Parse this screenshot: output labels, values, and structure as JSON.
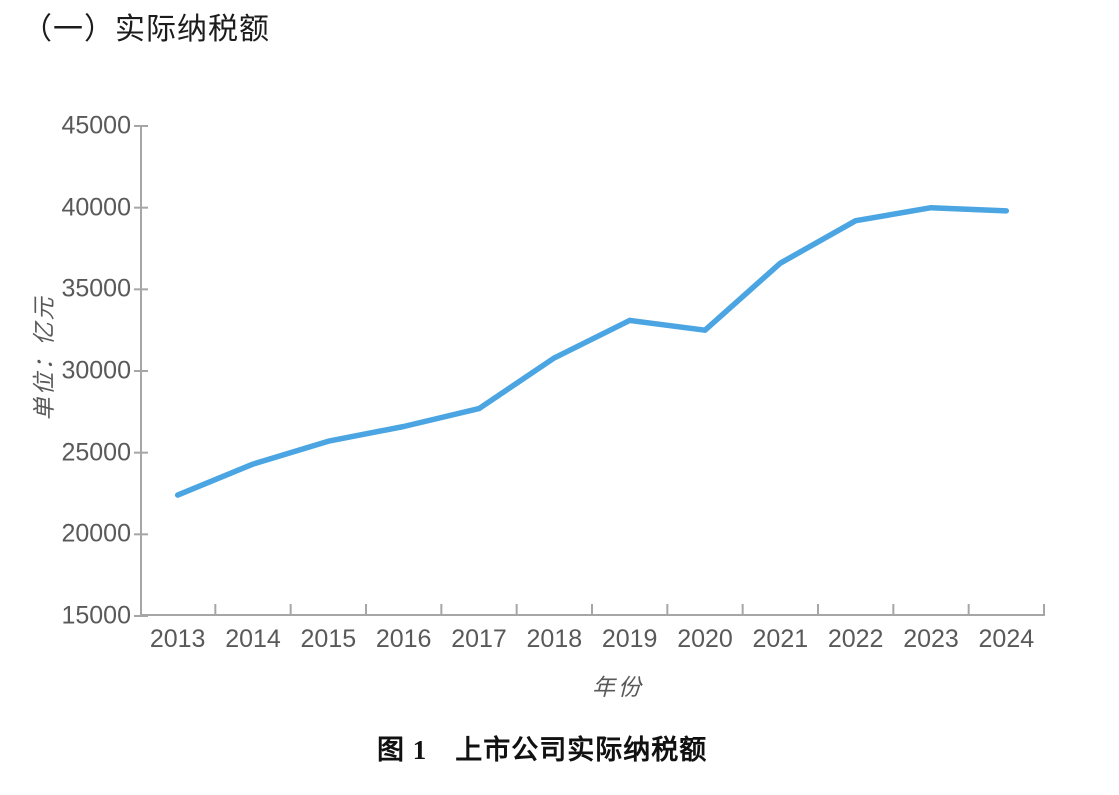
{
  "page": {
    "heading": "（一）实际纳税额",
    "caption": "图 1　上市公司实际纳税额"
  },
  "chart_data": {
    "type": "line",
    "title": "图 1　上市公司实际纳税额",
    "categories": [
      "2013",
      "2014",
      "2015",
      "2016",
      "2017",
      "2018",
      "2019",
      "2020",
      "2021",
      "2022",
      "2023",
      "2024"
    ],
    "values": [
      22400,
      24300,
      25700,
      26600,
      27700,
      30800,
      33100,
      32500,
      36600,
      39200,
      40000,
      39800
    ],
    "xlabel": "年份",
    "ylabel": "单位：亿元",
    "ylim": [
      15000,
      45000
    ],
    "yticks": [
      45000,
      40000,
      35000,
      30000,
      25000,
      20000,
      15000
    ],
    "grid": false,
    "legend": "none",
    "line_color": "#4aa5e2",
    "axis_color": "#a6a6a6",
    "label_color": "#595959"
  }
}
